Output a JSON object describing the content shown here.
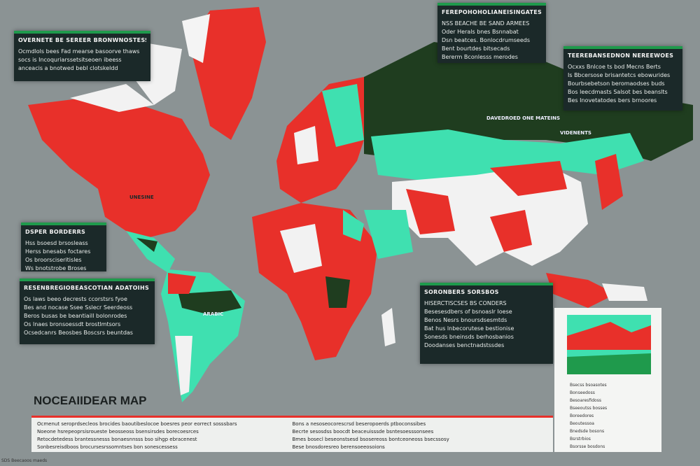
{
  "title": "NOCEAIIDEAR MAP",
  "panels": [
    {
      "heading": "OVERNETE BE SEREER BRONWNOSTESS",
      "lines": [
        "Ocmdlols bees Fad mearse basoorve thaws",
        "socs is Incoquriarssetsitseoen ibeess",
        "anceacis a bnotwed bebl clotskeldd"
      ]
    },
    {
      "heading": "FEREPOHOHOLIANEISINGATES",
      "lines": [
        "NSS BEACHE BE SAND ARMEES",
        "Oder Herals bnes Bsnnabat",
        "Dsn beatces. Bonlocdrumseeds",
        "Bent bourtdes bitsecads",
        "Bererm Bconlesss merodes"
      ]
    },
    {
      "heading": "TEEREBANSEDNON NEREEWOES",
      "lines": [
        "Ocxxs Bnlcoe ts bod Mecns Berts",
        "Is Bbcersose brisantetcs ebowurides",
        "Bourbsebetson beromaodses buds",
        "Bos leecdmasts Salsot bes beanslts",
        "Bes Inovetatodes bers brnoores"
      ]
    },
    {
      "heading": "DSPER BORDERRS",
      "lines": [
        "Hss bsoesd brsosleass",
        "Herss bnesabs foctares",
        "Os broorsciseritisles",
        "Ws bnotstrobe Broses"
      ]
    },
    {
      "heading": "RESENBREGIOBEASCOTIAN ADATOIHS",
      "lines": [
        "Os laws beeo decrests ccorstsrs fyoe",
        "Bes and nocase Ssee Sslecr Seerdeoss",
        "Beros busas be beantiaill bolonrodes",
        "Os lnaes bronsoessdt brostlmtsors",
        "Ocsedcanrs Beosbes Boscsrs beuntdas"
      ]
    },
    {
      "heading": "SORONBERS SORSBOS",
      "lines": [
        "HISERCTISCSES BS CONDERS",
        "Besesesdbers of bsnoaslr Ioese",
        "Benos Nesrs bnoursdsesmtds",
        "Bat hus lnbecorutese bestionise",
        "Sonesds bneinsds berhosbanios",
        "Doodanses benctnadstssdes"
      ]
    }
  ],
  "map_labels": [
    "UNESINE",
    "DAVEDROED ONE MATEINS",
    "VIDENENTS",
    "ARABIC"
  ],
  "bottom_notes": [
    [
      "Ocmenut seroprdsecleos brocides baoutibeslocoe boesres peor eorrect sosssbars",
      "Noeone hsrepeoprsisroueste beosseoss bsensirsdes borecoesrces",
      "Retocdetedess brantessnesss bonaesnnsss bso sihgp ebracenest",
      "Sonbesreisdboos brocursesrssomntses bon sonescessess"
    ],
    [
      "Bons a nesoseocorescrsd beseropoerds ptboconssibes",
      "Becrte sesosdss boocdt beaceuisssde bsntesoesssonsees",
      "Bmes bosecl beseonstsesd bsosereoss bontceoneoss bsecssosy",
      "Bese bnosdoresreo berensoeeosoions"
    ]
  ],
  "inset_list": [
    "Bsecss bsoasotes",
    "Bonseedoss",
    "Besoaresfidoss",
    "Bseeoutss bosses",
    "Boreedores",
    "Beoutessoa",
    "Bnedsde bosons",
    "Bsrstrbios",
    "Bsorsse bosdons"
  ],
  "footnote": "SDS Beecaoos maeds"
}
